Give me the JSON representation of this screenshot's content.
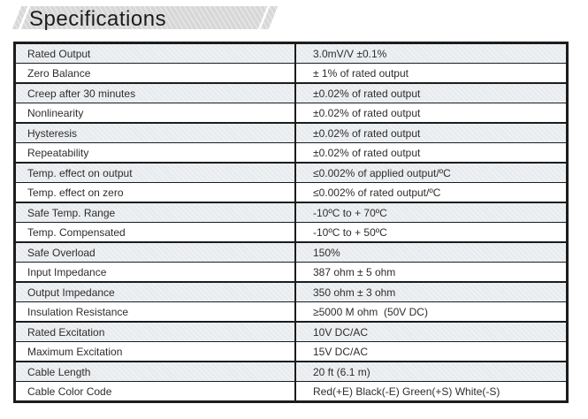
{
  "page": {
    "title": "Specifications"
  },
  "table": {
    "rows": [
      {
        "label": "Rated Output",
        "value": "3.0mV/V ±0.1%"
      },
      {
        "label": "Zero Balance",
        "value": "± 1% of rated output"
      },
      {
        "label": "Creep after 30 minutes",
        "value": "±0.02% of rated output"
      },
      {
        "label": "Nonlinearity",
        "value": "±0.02% of rated output"
      },
      {
        "label": "Hysteresis",
        "value": "±0.02% of rated output"
      },
      {
        "label": "Repeatability",
        "value": "±0.02% of rated output"
      },
      {
        "label": "Temp. effect on output",
        "value": "≤0.002% of applied output/ºC"
      },
      {
        "label": "Temp. effect on zero",
        "value": "≤0.002% of rated output/ºC"
      },
      {
        "label": "Safe Temp. Range",
        "value": "-10ºC to + 70ºC"
      },
      {
        "label": "Temp. Compensated",
        "value": "-10ºC to + 50ºC"
      },
      {
        "label": "Safe Overload",
        "value": "150%"
      },
      {
        "label": "Input Impedance",
        "value": "387 ohm ± 5 ohm"
      },
      {
        "label": "Output Impedance",
        "value": "350 ohm ± 3 ohm"
      },
      {
        "label": "Insulation Resistance",
        "value": "≥5000 M ohm  (50V DC)"
      },
      {
        "label": "Rated Excitation",
        "value": "10V DC/AC"
      },
      {
        "label": "Maximum Excitation",
        "value": "15V DC/AC"
      },
      {
        "label": "Cable Length",
        "value": "20 ft (6.1 m)"
      },
      {
        "label": "Cable Color Code",
        "value": "Red(+E) Black(-E) Green(+S) White(-S)"
      }
    ]
  },
  "colors": {
    "row_shade": "#e8ebee",
    "table_border": "#1c1c1c",
    "banner_fill": "#d7d7d7",
    "text": "#2d2d2d"
  }
}
